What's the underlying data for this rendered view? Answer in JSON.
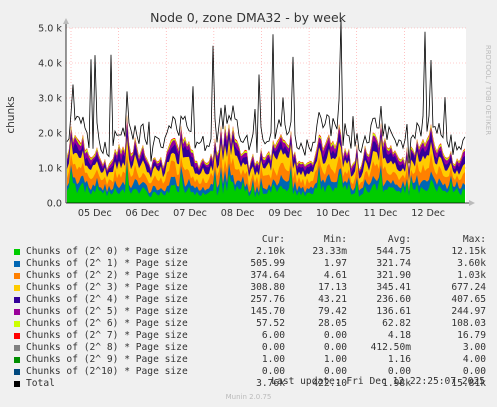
{
  "chart_data": {
    "type": "area",
    "title": "Node 0, zone DMA32 - by week",
    "ylabel": "chunks",
    "ylim": [
      0,
      5000
    ],
    "yticks": [
      "0.0",
      "1.0 k",
      "2.0 k",
      "3.0 k",
      "4.0 k",
      "5.0 k"
    ],
    "yticks_values": [
      0,
      1000,
      2000,
      3000,
      4000,
      5000
    ],
    "x_categories": [
      "05 Dec",
      "06 Dec",
      "07 Dec",
      "08 Dec",
      "09 Dec",
      "10 Dec",
      "11 Dec",
      "12 Dec"
    ],
    "side_text": "RRDTOOL / TOBI OETIKER",
    "grid": true,
    "colors": {
      "order0": "#00cc00",
      "order1": "#0066b3",
      "order2": "#ff8000",
      "order3": "#ffcc00",
      "order4": "#330099",
      "order5": "#990099",
      "order6": "#ccff00",
      "order7": "#ff0000",
      "order8": "#808080",
      "order9": "#008f00",
      "order10": "#00487d",
      "total": "#000000"
    },
    "series_summary": [
      {
        "name": "Chunks of (2^ 0) * Page size",
        "cur": "2.10k",
        "min": "23.33m",
        "avg": "544.75",
        "max": "12.15k"
      },
      {
        "name": "Chunks of (2^ 1) * Page size",
        "cur": "505.99",
        "min": "1.97",
        "avg": "321.74",
        "max": "3.60k"
      },
      {
        "name": "Chunks of (2^ 2) * Page size",
        "cur": "374.64",
        "min": "4.61",
        "avg": "321.90",
        "max": "1.03k"
      },
      {
        "name": "Chunks of (2^ 3) * Page size",
        "cur": "308.80",
        "min": "17.13",
        "avg": "345.41",
        "max": "677.24"
      },
      {
        "name": "Chunks of (2^ 4) * Page size",
        "cur": "257.76",
        "min": "43.21",
        "avg": "236.60",
        "max": "407.65"
      },
      {
        "name": "Chunks of (2^ 5) * Page size",
        "cur": "145.70",
        "min": "79.42",
        "avg": "136.61",
        "max": "244.97"
      },
      {
        "name": "Chunks of (2^ 6) * Page size",
        "cur": "57.52",
        "min": "28.05",
        "avg": "62.82",
        "max": "108.03"
      },
      {
        "name": "Chunks of (2^ 7) * Page size",
        "cur": "6.00",
        "min": "0.00",
        "avg": "4.18",
        "max": "16.79"
      },
      {
        "name": "Chunks of (2^ 8) * Page size",
        "cur": "0.00",
        "min": "0.00",
        "avg": "412.50m",
        "max": "3.00"
      },
      {
        "name": "Chunks of (2^ 9) * Page size",
        "cur": "1.00",
        "min": "1.00",
        "avg": "1.16",
        "max": "4.00"
      },
      {
        "name": "Chunks of (2^10) * Page size",
        "cur": "0.00",
        "min": "0.00",
        "avg": "0.00",
        "max": "0.00"
      },
      {
        "name": "Total",
        "cur": "3.76k",
        "min": "422.10",
        "avg": "1.98k",
        "max": "15.81k"
      }
    ]
  },
  "legend": {
    "header": {
      "cur": "Cur:",
      "min": "Min:",
      "avg": "Avg:",
      "max": "Max:"
    }
  },
  "footer": {
    "last_update": "Last update: Fri Dec 12 22:25:07 2025",
    "munin": "Munin 2.0.75"
  }
}
